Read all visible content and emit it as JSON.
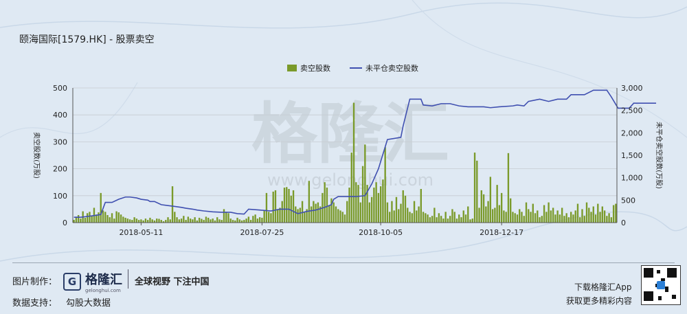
{
  "header": {
    "title": "颐海国际[1579.HK] - 股票卖空"
  },
  "watermark": {
    "brand": "格隆汇",
    "url": "www.gelonghui.com"
  },
  "chart_data": {
    "type": "bar+line",
    "legend": [
      "卖空股数",
      "未平仓卖空股数"
    ],
    "ylabel_left": "卖空股数(万股)",
    "ylabel_right": "未平仓卖空股数(万股)",
    "left_ticks": [
      "0",
      "100",
      "200",
      "300",
      "400",
      "500"
    ],
    "right_ticks": [
      "0",
      "500",
      "1,000",
      "1,500",
      "2,000",
      "2,500",
      "3,000"
    ],
    "ylim_left": [
      0,
      500
    ],
    "ylim_right": [
      0,
      3000
    ],
    "x_ticks": [
      "2018-05-11",
      "2018-07-25",
      "2018-10-05",
      "2018-12-17"
    ],
    "x_tick_index": [
      30,
      84,
      137,
      191
    ],
    "bar_color": "#7a9a2a",
    "line_color": "#3f4fb0",
    "bars": [
      10,
      22,
      28,
      15,
      42,
      18,
      35,
      40,
      25,
      55,
      30,
      38,
      110,
      45,
      40,
      28,
      20,
      35,
      15,
      42,
      38,
      30,
      22,
      18,
      15,
      12,
      10,
      20,
      15,
      10,
      12,
      8,
      15,
      10,
      18,
      12,
      8,
      15,
      14,
      10,
      5,
      10,
      20,
      12,
      135,
      40,
      20,
      12,
      15,
      25,
      10,
      22,
      15,
      12,
      20,
      8,
      18,
      14,
      10,
      22,
      18,
      12,
      15,
      8,
      20,
      12,
      10,
      50,
      40,
      35,
      15,
      10,
      8,
      18,
      12,
      8,
      10,
      15,
      22,
      10,
      25,
      30,
      15,
      20,
      18,
      45,
      110,
      40,
      35,
      115,
      120,
      50,
      55,
      80,
      130,
      132,
      125,
      100,
      120,
      60,
      50,
      55,
      80,
      40,
      50,
      155,
      60,
      80,
      70,
      75,
      60,
      110,
      150,
      130,
      65,
      90,
      75,
      60,
      50,
      45,
      40,
      30,
      80,
      130,
      260,
      445,
      150,
      140,
      75,
      210,
      290,
      140,
      75,
      95,
      130,
      150,
      110,
      135,
      160,
      280,
      75,
      40,
      80,
      45,
      95,
      50,
      70,
      120,
      100,
      55,
      40,
      35,
      80,
      45,
      60,
      125,
      40,
      35,
      30,
      20,
      25,
      55,
      20,
      35,
      25,
      15,
      40,
      15,
      25,
      50,
      40,
      15,
      30,
      20,
      45,
      30,
      60,
      12,
      15,
      260,
      230,
      55,
      120,
      105,
      60,
      80,
      170,
      50,
      55,
      140,
      65,
      110,
      45,
      40,
      258,
      90,
      40,
      35,
      30,
      50,
      40,
      25,
      75,
      50,
      40,
      70,
      35,
      45,
      20,
      25,
      65,
      40,
      75,
      45,
      55,
      30,
      45,
      30,
      55,
      25,
      35,
      20,
      40,
      30,
      45,
      70,
      20,
      50,
      25,
      75,
      55,
      40,
      60,
      30,
      70,
      40,
      60,
      45,
      25,
      35,
      20,
      65,
      70
    ],
    "line": [
      [
        0,
        120
      ],
      [
        3,
        120
      ],
      [
        8,
        150
      ],
      [
        12,
        180
      ],
      [
        14,
        450
      ],
      [
        17,
        450
      ],
      [
        20,
        520
      ],
      [
        23,
        570
      ],
      [
        25,
        570
      ],
      [
        28,
        550
      ],
      [
        30,
        520
      ],
      [
        33,
        500
      ],
      [
        34,
        470
      ],
      [
        36,
        470
      ],
      [
        39,
        400
      ],
      [
        42,
        380
      ],
      [
        45,
        360
      ],
      [
        48,
        340
      ],
      [
        50,
        320
      ],
      [
        53,
        300
      ],
      [
        55,
        280
      ],
      [
        58,
        260
      ],
      [
        62,
        240
      ],
      [
        66,
        230
      ],
      [
        70,
        230
      ],
      [
        73,
        200
      ],
      [
        76,
        190
      ],
      [
        78,
        300
      ],
      [
        83,
        280
      ],
      [
        88,
        260
      ],
      [
        92,
        300
      ],
      [
        96,
        300
      ],
      [
        100,
        200
      ],
      [
        104,
        250
      ],
      [
        108,
        280
      ],
      [
        112,
        340
      ],
      [
        115,
        400
      ],
      [
        116,
        520
      ],
      [
        118,
        580
      ],
      [
        126,
        580
      ],
      [
        130,
        600
      ],
      [
        133,
        860
      ],
      [
        136,
        1200
      ],
      [
        140,
        1850
      ],
      [
        146,
        1900
      ],
      [
        147,
        2150
      ],
      [
        150,
        2750
      ],
      [
        155,
        2750
      ],
      [
        156,
        2620
      ],
      [
        160,
        2600
      ],
      [
        164,
        2650
      ],
      [
        168,
        2650
      ],
      [
        172,
        2600
      ],
      [
        176,
        2580
      ],
      [
        183,
        2580
      ],
      [
        186,
        2560
      ],
      [
        190,
        2580
      ],
      [
        196,
        2600
      ],
      [
        198,
        2620
      ],
      [
        201,
        2600
      ],
      [
        203,
        2700
      ],
      [
        208,
        2750
      ],
      [
        212,
        2700
      ],
      [
        216,
        2750
      ],
      [
        220,
        2750
      ],
      [
        222,
        2850
      ],
      [
        228,
        2850
      ],
      [
        232,
        2950
      ],
      [
        238,
        2950
      ],
      [
        240,
        2800
      ],
      [
        243,
        2550
      ],
      [
        248,
        2550
      ],
      [
        250,
        2660
      ],
      [
        260,
        2660
      ]
    ]
  },
  "footer": {
    "made_by_label": "图片制作：",
    "brand_name": "格隆汇",
    "brand_sub": "gelonghui.com",
    "slogan": "全球视野 下注中国",
    "data_label": "数据支持：",
    "data_source": "勾股大数据",
    "app_line1": "下载格隆汇App",
    "app_line2": "获取更多精彩内容"
  }
}
